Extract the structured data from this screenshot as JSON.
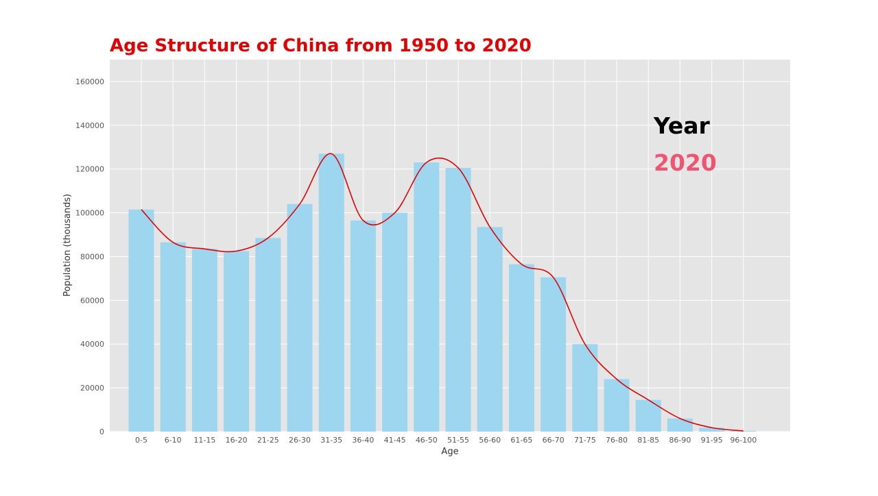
{
  "chart_data": {
    "type": "bar",
    "title": "Age Structure of China from 1950 to 2020",
    "xlabel": "Age",
    "ylabel": "Population (thousands)",
    "ylim": [
      0,
      170000
    ],
    "yticks": [
      0,
      20000,
      40000,
      60000,
      80000,
      100000,
      120000,
      140000,
      160000
    ],
    "grid": true,
    "categories": [
      "0-5",
      "6-10",
      "11-15",
      "16-20",
      "21-25",
      "26-30",
      "31-35",
      "36-40",
      "41-45",
      "46-50",
      "51-55",
      "56-60",
      "61-65",
      "66-70",
      "71-75",
      "76-80",
      "81-85",
      "86-90",
      "91-95",
      "96-100"
    ],
    "values": [
      101500,
      86500,
      83500,
      82500,
      88500,
      104000,
      127000,
      96500,
      100000,
      123000,
      120500,
      93500,
      76500,
      70500,
      40000,
      24000,
      14500,
      6000,
      1800,
      300
    ],
    "bar_color": "#9ed6ef",
    "line_color": "#e00000",
    "annotation": {
      "label": "Year",
      "value": "2020",
      "label_color": "#000000",
      "value_color": "#ef5470"
    },
    "title_color": "#e00000"
  }
}
